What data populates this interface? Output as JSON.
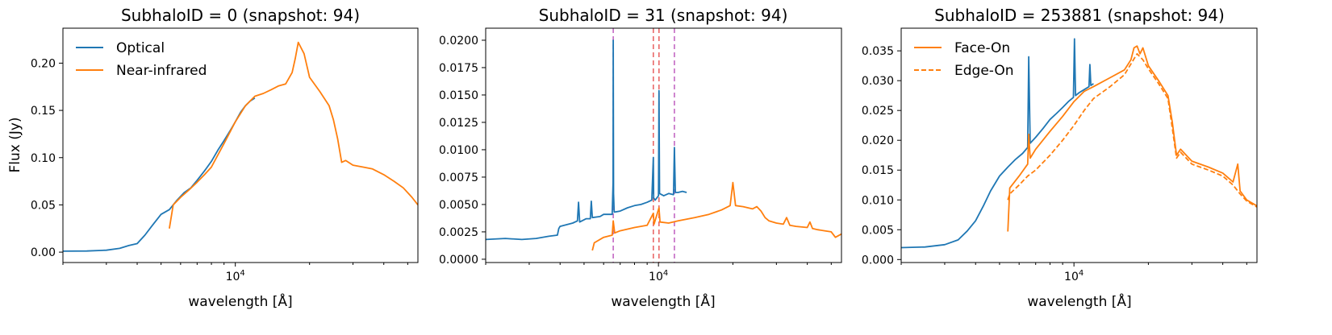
{
  "chart_data": [
    {
      "type": "line",
      "title": "SubhaloID = 0 (snapshot: 94)",
      "xlabel": "wavelength [Å]",
      "ylabel": "Flux (Jy)",
      "xscale": "log",
      "xlim": [
        2000,
        55000
      ],
      "ylim": [
        -0.011,
        0.237
      ],
      "xticks": [
        {
          "value": 10000,
          "base": "10",
          "exp": "4"
        }
      ],
      "yticks": [
        "0.00",
        "0.05",
        "0.10",
        "0.15",
        "0.20"
      ],
      "legend": "upper-left",
      "series": [
        {
          "name": "Optical",
          "color": "#1f77b4",
          "style": "solid",
          "x": [
            2000,
            2500,
            3000,
            3400,
            3700,
            4000,
            4300,
            4600,
            5000,
            5400,
            5800,
            6200,
            6600,
            7000,
            7500,
            8000,
            8500,
            9000,
            9500,
            10000,
            10500,
            11000,
            11500,
            12000
          ],
          "y": [
            0.001,
            0.0012,
            0.002,
            0.004,
            0.007,
            0.009,
            0.018,
            0.028,
            0.04,
            0.045,
            0.055,
            0.063,
            0.068,
            0.076,
            0.086,
            0.096,
            0.108,
            0.118,
            0.128,
            0.138,
            0.148,
            0.155,
            0.16,
            0.163
          ]
        },
        {
          "name": "Near-infrared",
          "color": "#ff7f0e",
          "style": "solid",
          "x": [
            5400,
            5600,
            6000,
            6500,
            7000,
            7500,
            8000,
            9000,
            10000,
            11000,
            12000,
            13000,
            14000,
            15000,
            16000,
            17000,
            17500,
            18000,
            19000,
            20000,
            22000,
            24000,
            25000,
            26000,
            27000,
            28000,
            30000,
            33000,
            36000,
            40000,
            44000,
            48000,
            52000,
            55000
          ],
          "y": [
            0.025,
            0.05,
            0.058,
            0.066,
            0.074,
            0.082,
            0.09,
            0.115,
            0.138,
            0.155,
            0.165,
            0.168,
            0.172,
            0.176,
            0.178,
            0.19,
            0.205,
            0.222,
            0.21,
            0.185,
            0.17,
            0.155,
            0.14,
            0.12,
            0.095,
            0.097,
            0.092,
            0.09,
            0.088,
            0.082,
            0.075,
            0.068,
            0.058,
            0.05
          ]
        }
      ]
    },
    {
      "type": "line",
      "title": "SubhaloID = 31 (snapshot: 94)",
      "xlabel": "wavelength [Å]",
      "ylabel": "",
      "xscale": "log",
      "xlim": [
        2000,
        55000
      ],
      "ylim": [
        -0.0003,
        0.0211
      ],
      "xticks": [
        {
          "value": 10000,
          "base": "10",
          "exp": "4"
        }
      ],
      "yticks": [
        "0.0000",
        "0.0025",
        "0.0050",
        "0.0075",
        "0.0100",
        "0.0125",
        "0.0150",
        "0.0175",
        "0.0200"
      ],
      "vlines": [
        {
          "x": 6563,
          "color": "#c060c0",
          "style": "dashed"
        },
        {
          "x": 9533,
          "color": "#e86060",
          "style": "dashed"
        },
        {
          "x": 10049,
          "color": "#e86060",
          "style": "dashed"
        },
        {
          "x": 11600,
          "color": "#c060c0",
          "style": "dashed"
        }
      ],
      "series": [
        {
          "name": "",
          "color": "#1f77b4",
          "style": "solid",
          "x": [
            2000,
            2400,
            2800,
            3200,
            3600,
            3900,
            3950,
            4000,
            4500,
            4700,
            4750,
            4800,
            5100,
            5300,
            5350,
            5400,
            5800,
            6000,
            6500,
            6550,
            6563,
            6580,
            6620,
            7000,
            7500,
            8000,
            8500,
            9000,
            9400,
            9533,
            9560,
            9700,
            10000,
            10049,
            10100,
            10500,
            11000,
            11500,
            11600,
            11700,
            12000,
            12500,
            13000
          ],
          "y": [
            0.0018,
            0.0019,
            0.0018,
            0.0019,
            0.0021,
            0.0022,
            0.0028,
            0.003,
            0.0033,
            0.0035,
            0.0052,
            0.0034,
            0.0037,
            0.0037,
            0.0053,
            0.0038,
            0.0039,
            0.0041,
            0.0041,
            0.007,
            0.02,
            0.006,
            0.0043,
            0.0044,
            0.0047,
            0.0049,
            0.005,
            0.0052,
            0.0054,
            0.0093,
            0.0056,
            0.0054,
            0.0058,
            0.0154,
            0.006,
            0.0058,
            0.006,
            0.0059,
            0.0102,
            0.0061,
            0.0061,
            0.0062,
            0.0061
          ]
        },
        {
          "name": "",
          "color": "#ff7f0e",
          "style": "solid",
          "x": [
            5400,
            5500,
            6000,
            6500,
            6563,
            6650,
            7000,
            8000,
            9000,
            9533,
            9600,
            10049,
            10150,
            11000,
            12000,
            14000,
            16000,
            18000,
            19500,
            20000,
            20500,
            22000,
            24000,
            25000,
            26000,
            27000,
            28000,
            30000,
            32000,
            33000,
            34000,
            36000,
            40000,
            41000,
            42000,
            44000,
            47000,
            50000,
            52000,
            55000
          ],
          "y": [
            0.0008,
            0.0015,
            0.002,
            0.0022,
            0.0035,
            0.0024,
            0.0026,
            0.0029,
            0.0031,
            0.0042,
            0.0032,
            0.0047,
            0.0034,
            0.0033,
            0.0035,
            0.0038,
            0.0041,
            0.0045,
            0.0049,
            0.007,
            0.0049,
            0.0048,
            0.0046,
            0.0048,
            0.0044,
            0.0038,
            0.0035,
            0.0033,
            0.0032,
            0.0038,
            0.0031,
            0.003,
            0.0029,
            0.0034,
            0.0028,
            0.0027,
            0.0026,
            0.0025,
            0.002,
            0.0023
          ]
        }
      ]
    },
    {
      "type": "line",
      "title": "SubhaloID = 253881 (snapshot: 94)",
      "xlabel": "wavelength [Å]",
      "ylabel": "",
      "xscale": "log",
      "xlim": [
        2000,
        55000
      ],
      "ylim": [
        -0.0005,
        0.0388
      ],
      "xticks": [
        {
          "value": 10000,
          "base": "10",
          "exp": "4"
        }
      ],
      "yticks": [
        "0.000",
        "0.005",
        "0.010",
        "0.015",
        "0.020",
        "0.025",
        "0.030",
        "0.035"
      ],
      "legend": "upper-left",
      "series": [
        {
          "name": "",
          "color": "#1f77b4",
          "style": "solid",
          "x": [
            2000,
            2500,
            3000,
            3400,
            3700,
            4000,
            4300,
            4600,
            5000,
            5400,
            5800,
            6200,
            6500,
            6563,
            6650,
            7000,
            7500,
            8000,
            8500,
            9000,
            9500,
            9950,
            10049,
            10150,
            10500,
            11000,
            11500,
            11600,
            11700,
            12000
          ],
          "y": [
            0.002,
            0.0021,
            0.0025,
            0.0033,
            0.0048,
            0.0065,
            0.009,
            0.0115,
            0.014,
            0.0155,
            0.0168,
            0.0178,
            0.0188,
            0.034,
            0.0195,
            0.0205,
            0.022,
            0.0235,
            0.0245,
            0.0255,
            0.0265,
            0.0272,
            0.037,
            0.0275,
            0.028,
            0.0285,
            0.029,
            0.0327,
            0.0292,
            0.0295
          ]
        },
        {
          "name": "Face-On",
          "color": "#ff7f0e",
          "style": "solid",
          "x": [
            5400,
            5500,
            6000,
            6500,
            6563,
            6650,
            7000,
            8000,
            9000,
            10000,
            11000,
            12000,
            14000,
            16000,
            17000,
            17500,
            18000,
            18500,
            19000,
            20000,
            22000,
            24000,
            25000,
            26000,
            27000,
            30000,
            35000,
            40000,
            44000,
            46000,
            47000,
            50000,
            55000
          ],
          "y": [
            0.0047,
            0.012,
            0.014,
            0.016,
            0.021,
            0.017,
            0.0185,
            0.0215,
            0.024,
            0.0265,
            0.0282,
            0.029,
            0.0305,
            0.0318,
            0.0335,
            0.0355,
            0.0358,
            0.0345,
            0.0355,
            0.0325,
            0.03,
            0.0275,
            0.023,
            0.0175,
            0.0185,
            0.0165,
            0.0155,
            0.0145,
            0.013,
            0.016,
            0.0115,
            0.01,
            0.009
          ]
        },
        {
          "name": "Edge-On",
          "color": "#ff7f0e",
          "style": "dashed",
          "x": [
            5400,
            5500,
            6000,
            6500,
            7000,
            8000,
            9000,
            10000,
            11000,
            12000,
            14000,
            16000,
            18000,
            19000,
            20000,
            22000,
            24000,
            25000,
            26000,
            27000,
            30000,
            35000,
            40000,
            44000,
            47000,
            50000,
            55000
          ],
          "y": [
            0.01,
            0.011,
            0.0125,
            0.014,
            0.015,
            0.0175,
            0.02,
            0.0225,
            0.025,
            0.027,
            0.029,
            0.031,
            0.0345,
            0.0335,
            0.032,
            0.0295,
            0.027,
            0.022,
            0.017,
            0.018,
            0.016,
            0.015,
            0.014,
            0.0125,
            0.011,
            0.0098,
            0.0088
          ]
        }
      ]
    }
  ],
  "legends": [
    {
      "entries": [
        {
          "label": "Optical",
          "color": "#1f77b4",
          "style": "solid"
        },
        {
          "label": "Near-infrared",
          "color": "#ff7f0e",
          "style": "solid"
        }
      ]
    },
    null,
    {
      "entries": [
        {
          "label": "Face-On",
          "color": "#ff7f0e",
          "style": "solid"
        },
        {
          "label": "Edge-On",
          "color": "#ff7f0e",
          "style": "dashed"
        }
      ]
    }
  ]
}
